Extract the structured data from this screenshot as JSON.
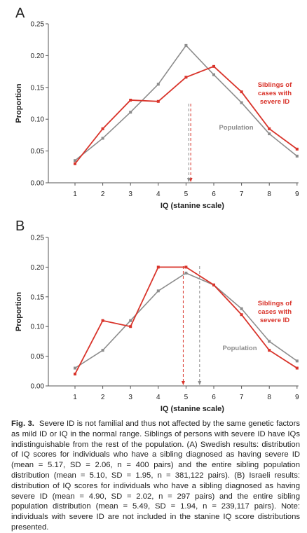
{
  "figure_caption": {
    "label": "Fig. 3.",
    "text": "Severe ID is not familial and thus not affected by the same genetic factors as mild ID or IQ in the normal range. Siblings of persons with severe ID have IQs indistinguishable from the rest of the population. (A) Swedish results: distribution of IQ scores for individuals who have a sibling diagnosed as having severe ID (mean = 5.17, SD = 2.06, n = 400 pairs) and the entire sibling population distribution (mean = 5.10, SD = 1.95, n = 381,122 pairs). (B) Israeli results: distribution of IQ scores for individuals who have a sibling diagnosed as having severe ID (mean = 4.90, SD = 2.02, n = 297 pairs) and the entire sibling population distribution (mean = 5.49, SD = 1.94, n = 239,117 pairs). Note: individuals with severe ID are not included in the stanine IQ score distributions presented."
  },
  "colors": {
    "siblings": "#d9342b",
    "population": "#8c8c8c",
    "axis": "#555555"
  },
  "chart_data": [
    {
      "panel": "A",
      "type": "line",
      "x": [
        1,
        2,
        3,
        4,
        5,
        6,
        7,
        8,
        9
      ],
      "xlabel": "IQ (stanine scale)",
      "ylabel": "Proportion",
      "ylim": [
        0,
        0.25
      ],
      "yticks": [
        "0.00",
        "0.05",
        "0.10",
        "0.15",
        "0.20",
        "0.25"
      ],
      "series": [
        {
          "name": "Siblings of cases with severe ID",
          "label_lines": [
            "Siblings of",
            "cases with",
            "severe ID"
          ],
          "color": "#d9342b",
          "values": [
            0.03,
            0.085,
            0.13,
            0.128,
            0.166,
            0.183,
            0.143,
            0.085,
            0.053
          ]
        },
        {
          "name": "Population",
          "label_lines": [
            "Population"
          ],
          "color": "#8c8c8c",
          "values": [
            0.035,
            0.07,
            0.111,
            0.155,
            0.216,
            0.17,
            0.126,
            0.077,
            0.042
          ]
        }
      ],
      "mean_lines": [
        {
          "series": "Siblings of cases with severe ID",
          "x": 5.17
        },
        {
          "series": "Population",
          "x": 5.1
        }
      ]
    },
    {
      "panel": "B",
      "type": "line",
      "x": [
        1,
        2,
        3,
        4,
        5,
        6,
        7,
        8,
        9
      ],
      "xlabel": "IQ (stanine scale)",
      "ylabel": "Proportion",
      "ylim": [
        0,
        0.25
      ],
      "yticks": [
        "0.00",
        "0.05",
        "0.10",
        "0.15",
        "0.20",
        "0.25"
      ],
      "series": [
        {
          "name": "Siblings of cases with severe ID",
          "label_lines": [
            "Siblings of",
            "cases with",
            "severe ID"
          ],
          "color": "#d9342b",
          "values": [
            0.02,
            0.11,
            0.1,
            0.2,
            0.2,
            0.17,
            0.12,
            0.06,
            0.03
          ]
        },
        {
          "name": "Population",
          "label_lines": [
            "Population"
          ],
          "color": "#8c8c8c",
          "values": [
            0.03,
            0.06,
            0.11,
            0.16,
            0.19,
            0.17,
            0.13,
            0.075,
            0.042
          ]
        }
      ],
      "mean_lines": [
        {
          "series": "Siblings of cases with severe ID",
          "x": 4.9
        },
        {
          "series": "Population",
          "x": 5.49
        }
      ]
    }
  ]
}
